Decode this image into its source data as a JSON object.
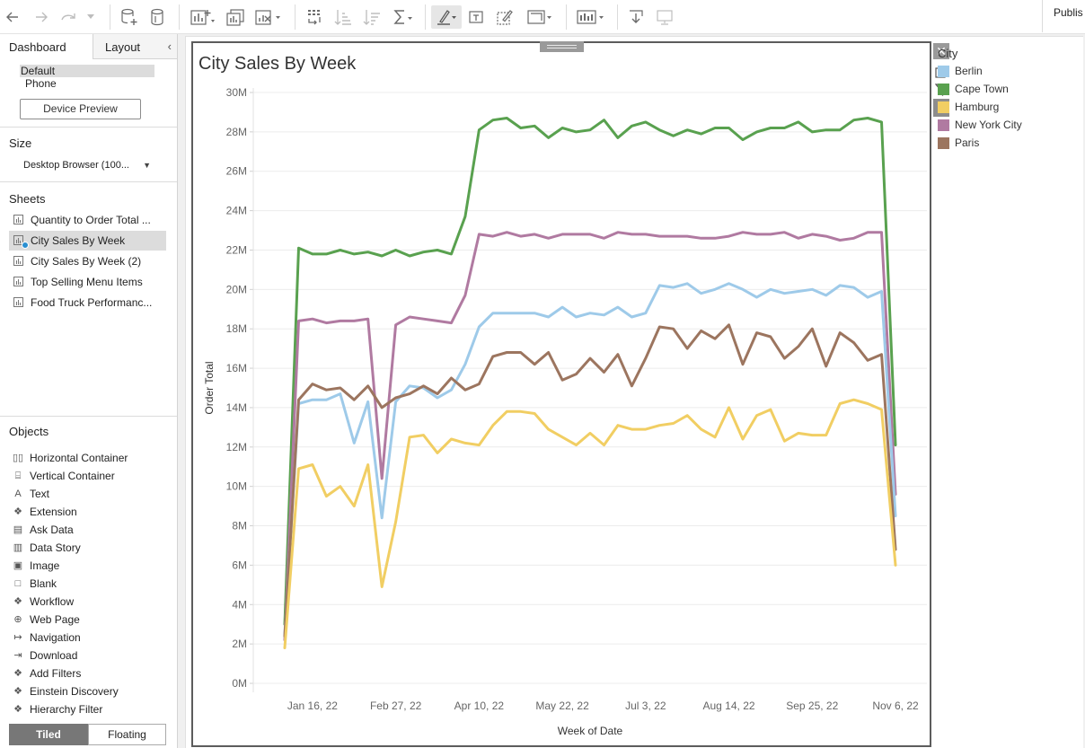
{
  "toolbar": {
    "icons": [
      "back-icon",
      "forward-icon",
      "redo-icon",
      "dropdown-icon",
      "new-datasource-icon",
      "datasource-icon",
      "new-worksheet-icon",
      "duplicate-icon",
      "clear-sheet-icon",
      "swap-icon",
      "sort-asc-icon",
      "sort-desc-icon",
      "totals-icon",
      "highlight-icon",
      "label-icon",
      "annotate-icon",
      "fit-icon",
      "show-me-icon",
      "download-icon",
      "presentation-icon"
    ],
    "publish_label": "Publis"
  },
  "left_panel": {
    "tabs": [
      "Dashboard",
      "Layout"
    ],
    "devices": [
      "Default",
      "Phone"
    ],
    "device_preview_label": "Device Preview",
    "size_heading": "Size",
    "size_value": "Desktop Browser (100...",
    "sheets_heading": "Sheets",
    "sheets": [
      {
        "label": "Quantity to Order Total ...",
        "selected": false
      },
      {
        "label": "City Sales By Week",
        "selected": true
      },
      {
        "label": "City Sales By Week (2)",
        "selected": false
      },
      {
        "label": "Top Selling Menu Items",
        "selected": false
      },
      {
        "label": "Food Truck Performanc...",
        "selected": false
      }
    ],
    "objects_heading": "Objects",
    "objects": [
      {
        "label": "Horizontal Container",
        "icon": "horizontal-container-icon"
      },
      {
        "label": "Vertical Container",
        "icon": "vertical-container-icon"
      },
      {
        "label": "Text",
        "icon": "text-icon"
      },
      {
        "label": "Extension",
        "icon": "extension-icon"
      },
      {
        "label": "Ask Data",
        "icon": "ask-data-icon"
      },
      {
        "label": "Data Story",
        "icon": "data-story-icon"
      },
      {
        "label": "Image",
        "icon": "image-icon"
      },
      {
        "label": "Blank",
        "icon": "blank-icon"
      },
      {
        "label": "Workflow",
        "icon": "workflow-icon"
      },
      {
        "label": "Web Page",
        "icon": "web-page-icon"
      },
      {
        "label": "Navigation",
        "icon": "navigation-icon"
      },
      {
        "label": "Download",
        "icon": "download-icon"
      },
      {
        "label": "Add Filters",
        "icon": "add-filters-icon"
      },
      {
        "label": "Einstein Discovery",
        "icon": "einstein-discovery-icon"
      },
      {
        "label": "Hierarchy Filter",
        "icon": "hierarchy-filter-icon"
      }
    ],
    "layout_modes": [
      "Tiled",
      "Floating"
    ]
  },
  "legend": {
    "title": "City",
    "items": [
      {
        "label": "Berlin",
        "color": "#9ecae9"
      },
      {
        "label": "Cape Town",
        "color": "#59a14f"
      },
      {
        "label": "Hamburg",
        "color": "#f1ce63"
      },
      {
        "label": "New York City",
        "color": "#b07aa1"
      },
      {
        "label": "Paris",
        "color": "#9c755f"
      }
    ]
  },
  "chart_data": {
    "type": "line",
    "title": "City Sales By Week",
    "xlabel": "Week of Date",
    "ylabel": "Order Total",
    "x_ticks": [
      "Jan 16, 22",
      "Feb 27, 22",
      "Apr 10, 22",
      "May 22, 22",
      "Jul 3, 22",
      "Aug 14, 22",
      "Sep 25, 22",
      "Nov 6, 22"
    ],
    "y_ticks": [
      "0M",
      "2M",
      "4M",
      "6M",
      "8M",
      "10M",
      "12M",
      "14M",
      "16M",
      "18M",
      "20M",
      "22M",
      "24M",
      "26M",
      "28M",
      "30M"
    ],
    "ylim": [
      0,
      30
    ],
    "y_unit": "M",
    "x_start": "Jan 2, 22",
    "x_end": "Nov 6, 22",
    "grid": true,
    "legend_position": "right",
    "series": [
      {
        "name": "Cape Town",
        "color": "#59a14f",
        "values": [
          3.0,
          22.1,
          21.8,
          21.8,
          22.0,
          21.8,
          21.9,
          21.7,
          22.0,
          21.7,
          21.9,
          22.0,
          21.8,
          23.7,
          28.1,
          28.6,
          28.7,
          28.2,
          28.3,
          27.7,
          28.2,
          28.0,
          28.1,
          28.6,
          27.7,
          28.3,
          28.5,
          28.1,
          27.8,
          28.1,
          27.9,
          28.2,
          28.2,
          27.6,
          28.0,
          28.2,
          28.2,
          28.5,
          28.0,
          28.1,
          28.1,
          28.6,
          28.7,
          28.5,
          12.1
        ]
      },
      {
        "name": "New York City",
        "color": "#b07aa1",
        "values": [
          2.2,
          18.4,
          18.5,
          18.3,
          18.4,
          18.4,
          18.5,
          10.4,
          18.2,
          18.6,
          18.5,
          18.4,
          18.3,
          19.7,
          22.8,
          22.7,
          22.9,
          22.7,
          22.8,
          22.6,
          22.8,
          22.8,
          22.8,
          22.6,
          22.9,
          22.8,
          22.8,
          22.7,
          22.7,
          22.7,
          22.6,
          22.6,
          22.7,
          22.9,
          22.8,
          22.8,
          22.9,
          22.6,
          22.8,
          22.7,
          22.5,
          22.6,
          22.9,
          22.9,
          9.6
        ]
      },
      {
        "name": "Berlin",
        "color": "#9ecae9",
        "values": [
          2.5,
          14.2,
          14.4,
          14.4,
          14.7,
          12.2,
          14.3,
          8.4,
          14.3,
          15.1,
          15.0,
          14.5,
          14.9,
          16.2,
          18.1,
          18.8,
          18.8,
          18.8,
          18.8,
          18.6,
          19.1,
          18.6,
          18.8,
          18.7,
          19.1,
          18.6,
          18.8,
          20.2,
          20.1,
          20.3,
          19.8,
          20.0,
          20.3,
          20.0,
          19.6,
          20.0,
          19.8,
          19.9,
          20.0,
          19.7,
          20.2,
          20.1,
          19.6,
          19.9,
          8.5
        ]
      },
      {
        "name": "Paris",
        "color": "#9c755f",
        "values": [
          2.4,
          14.4,
          15.2,
          14.9,
          15.0,
          14.4,
          15.1,
          14.0,
          14.5,
          14.7,
          15.1,
          14.7,
          15.5,
          14.9,
          15.2,
          16.6,
          16.8,
          16.8,
          16.2,
          16.8,
          15.4,
          15.7,
          16.5,
          15.8,
          16.7,
          15.1,
          16.5,
          18.1,
          18.0,
          17.0,
          17.9,
          17.5,
          18.2,
          16.2,
          17.8,
          17.6,
          16.5,
          17.1,
          18.0,
          16.1,
          17.8,
          17.3,
          16.4,
          16.7,
          6.8
        ]
      },
      {
        "name": "Hamburg",
        "color": "#f1ce63",
        "values": [
          1.8,
          10.9,
          11.1,
          9.5,
          10.0,
          9.0,
          11.1,
          4.9,
          8.2,
          12.5,
          12.6,
          11.7,
          12.4,
          12.2,
          12.1,
          13.1,
          13.8,
          13.8,
          13.7,
          12.9,
          12.5,
          12.1,
          12.7,
          12.1,
          13.1,
          12.9,
          12.9,
          13.1,
          13.2,
          13.6,
          12.9,
          12.5,
          14.0,
          12.4,
          13.6,
          13.9,
          12.3,
          12.7,
          12.6,
          12.6,
          14.2,
          14.4,
          14.2,
          13.9,
          6.0
        ]
      }
    ]
  }
}
